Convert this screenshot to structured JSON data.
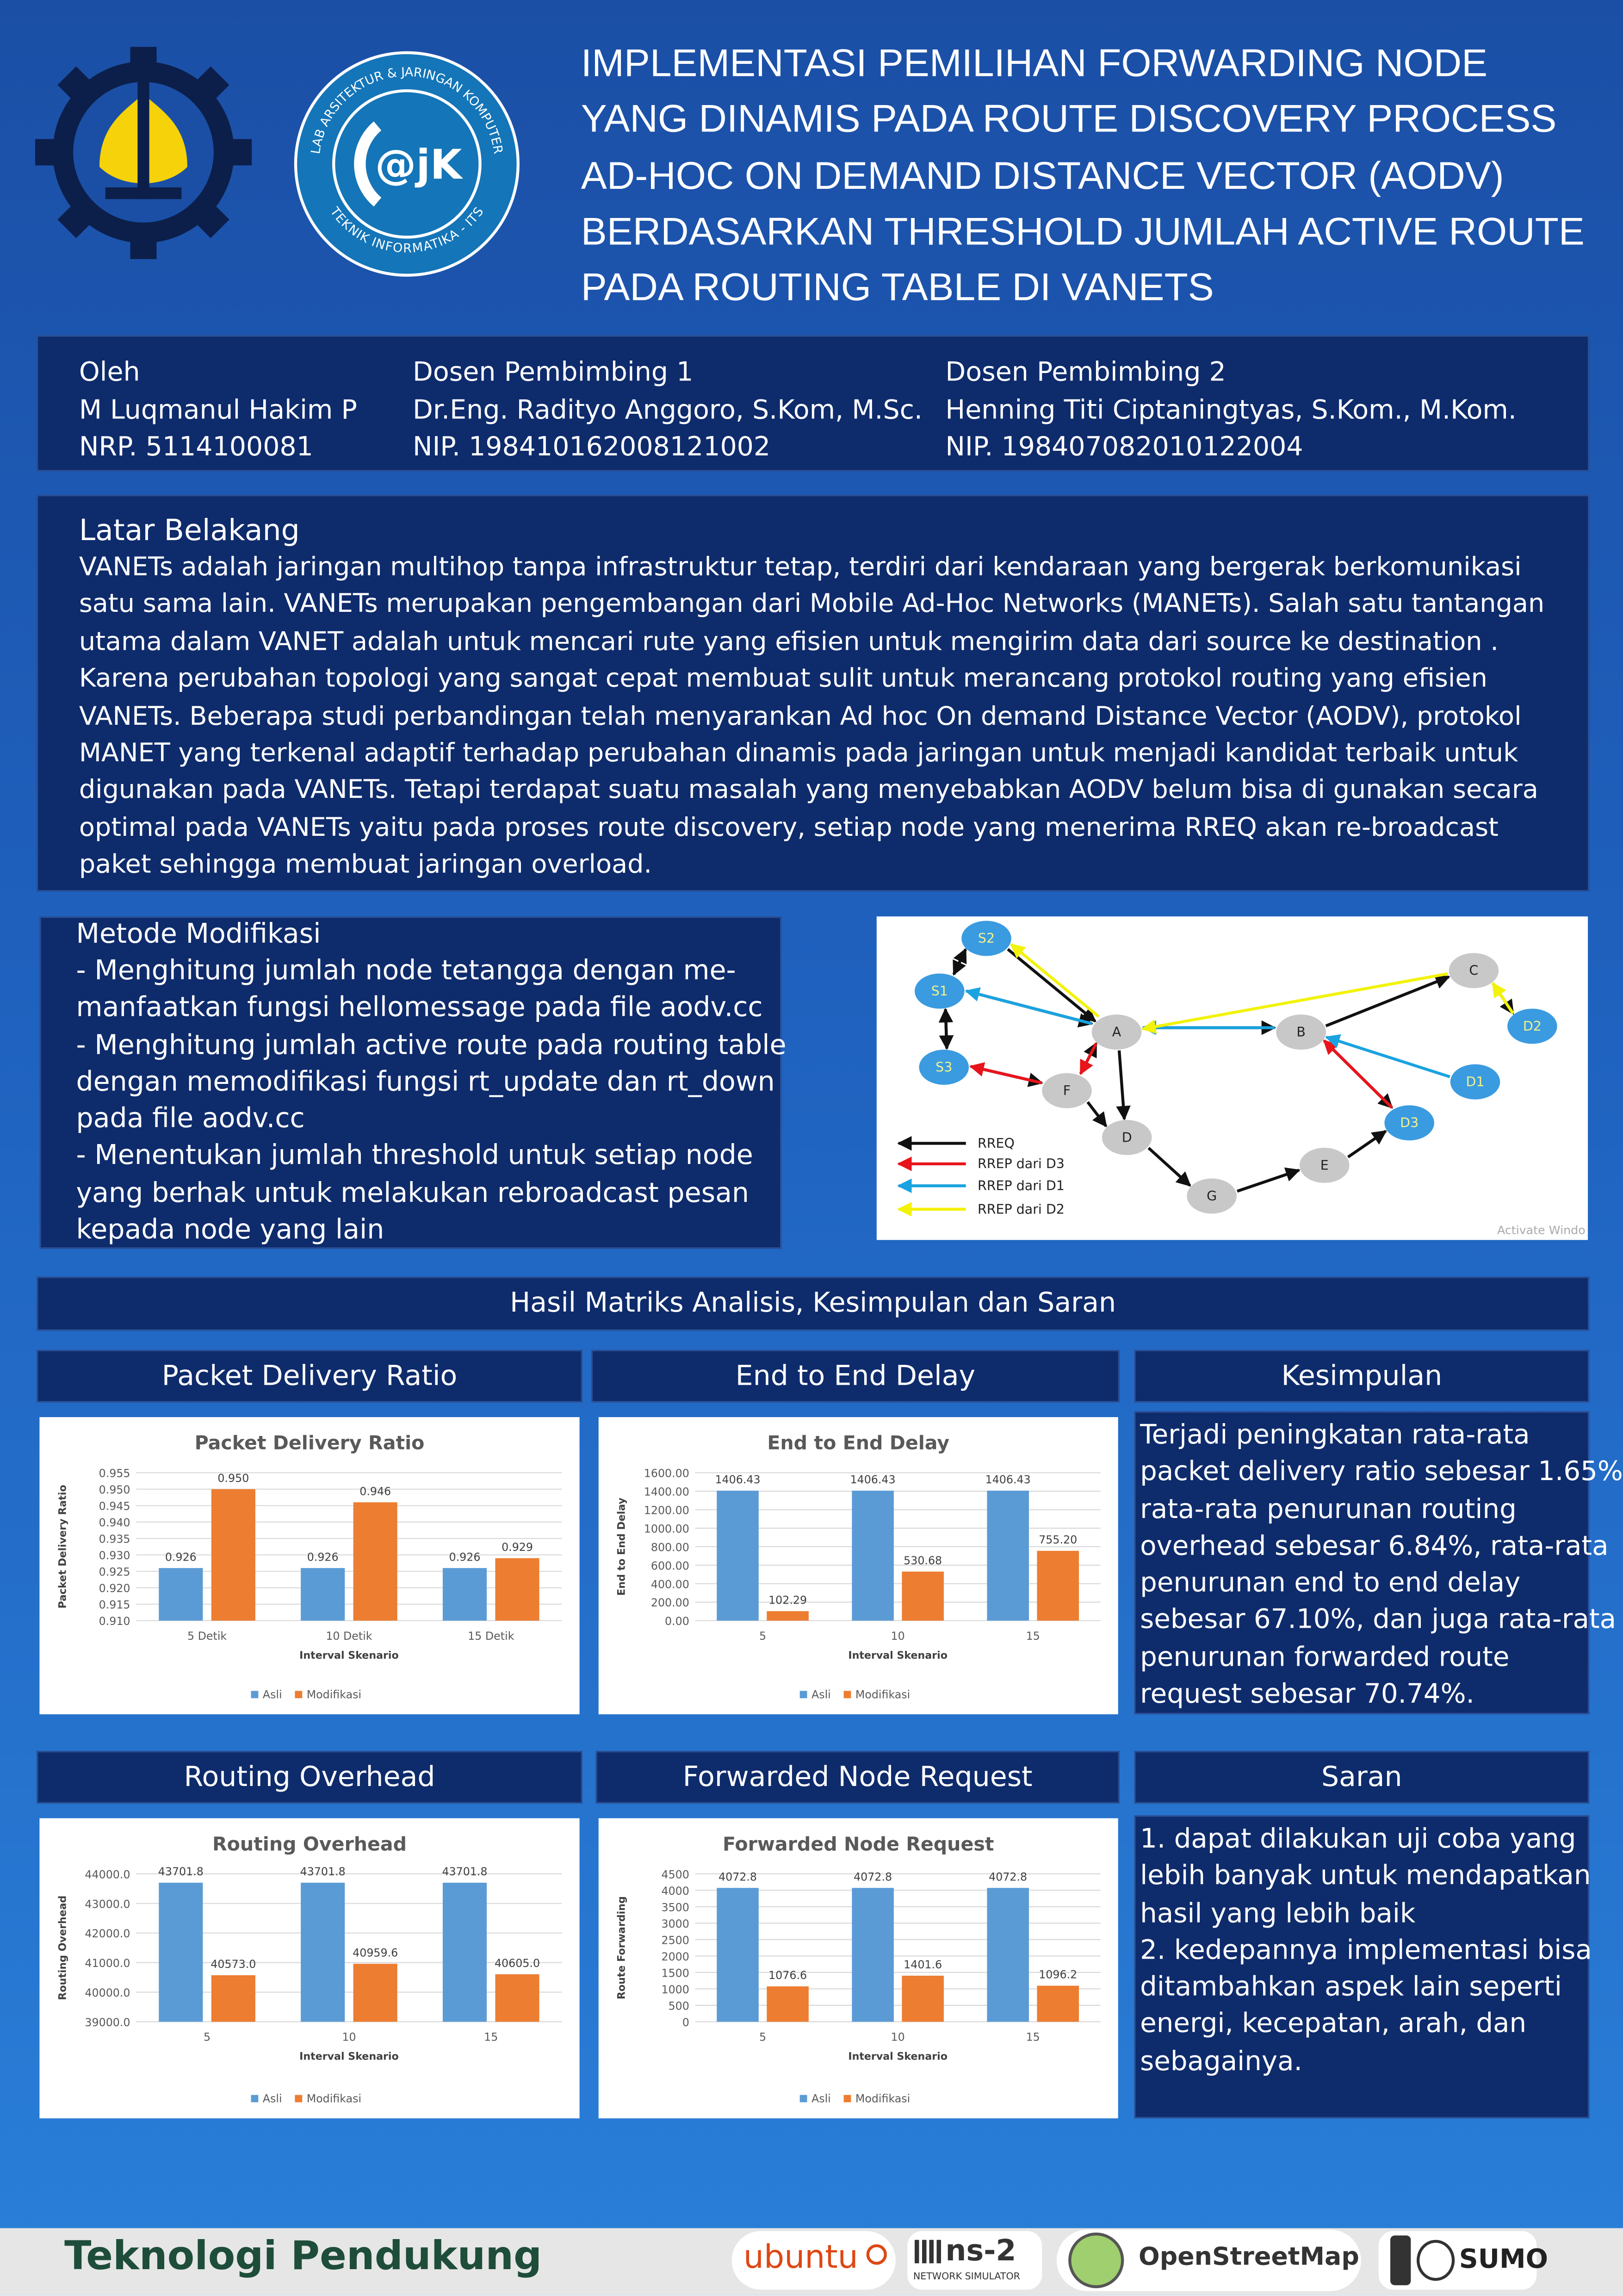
{
  "header": {
    "logo_lab": {
      "ring_top": "LAB ARSITEKTUR & JARINGAN KOMPUTER",
      "ring_bottom": "TEKNIK INFORMATIKA - ITS",
      "mark": "@jK"
    },
    "title": [
      "IMPLEMENTASI PEMILIHAN FORWARDING NODE",
      "YANG DINAMIS PADA ROUTE DISCOVERY PROCESS",
      "AD-HOC ON DEMAND DISTANCE VECTOR (AODV)",
      "BERDASARKAN THRESHOLD JUMLAH ACTIVE ROUTE",
      "PADA ROUTING TABLE DI VANETS"
    ]
  },
  "authors": [
    {
      "role": "Oleh",
      "name": "M Luqmanul Hakim P",
      "id": "NRP. 5114100081"
    },
    {
      "role": "Dosen Pembimbing 1",
      "name": "Dr.Eng. Radityo Anggoro, S.Kom, M.Sc.",
      "id": "NIP. 198410162008121002"
    },
    {
      "role": "Dosen Pembimbing 2",
      "name": "Henning Titi Ciptaningtyas, S.Kom., M.Kom.",
      "id": "NIP. 198407082010122004"
    }
  ],
  "background": {
    "heading": "Latar Belakang",
    "lines": [
      "VANETs adalah jaringan multihop tanpa infrastruktur tetap, terdiri dari kendaraan yang bergerak berkomunikasi",
      "satu sama lain. VANETs merupakan pengembangan dari Mobile Ad-Hoc Networks (MANETs). Salah satu tantangan",
      "utama dalam VANET adalah untuk mencari rute yang efisien untuk mengirim data dari source ke destination .",
      "Karena perubahan topologi yang sangat cepat membuat sulit untuk merancang protokol routing yang efisien",
      "VANETs. Beberapa studi perbandingan telah menyarankan Ad hoc On demand Distance Vector (AODV), protokol",
      "MANET yang terkenal adaptif terhadap perubahan dinamis pada jaringan untuk menjadi kandidat terbaik untuk",
      "digunakan pada VANETs. Tetapi terdapat suatu masalah yang menyebabkan AODV belum bisa di gunakan secara",
      "optimal pada VANETs yaitu pada proses route discovery, setiap node yang menerima RREQ akan re-broadcast",
      "paket sehingga membuat jaringan overload."
    ]
  },
  "method": {
    "heading": "Metode Modifikasi",
    "lines": [
      "- Menghitung jumlah node tetangga dengan me-",
      "manfaatkan fungsi hellomessage pada file aodv.cc",
      "- Menghitung jumlah active route  pada routing table",
      "dengan memodifikasi fungsi rt_update dan rt_down",
      "pada file aodv.cc",
      "- Menentukan jumlah threshold untuk setiap node",
      "yang berhak untuk melakukan rebroadcast pesan",
      "kepada node yang lain"
    ]
  },
  "diagram": {
    "nodes": [
      "S2",
      "S1",
      "S3",
      "A",
      "F",
      "D",
      "G",
      "E",
      "B",
      "C",
      "D2",
      "D1",
      "D3"
    ],
    "legend": [
      "RREQ",
      "RREP dari D3",
      "RREP dari D1",
      "RREP dari D2"
    ],
    "watermark": "Activate Windo"
  },
  "results_heading": "Hasil Matriks Analisis, Kesimpulan dan Saran",
  "panels": [
    "Packet Delivery Ratio",
    "End to End Delay",
    "Routing Overhead",
    "Forwarded Node Request"
  ],
  "chart_data": [
    {
      "type": "bar",
      "title": "Packet Delivery Ratio",
      "x_label": "Interval Skenario",
      "y_label": "Packet Delivery Ratio",
      "categories": [
        "5 Detik",
        "10 Detik",
        "15 Detik"
      ],
      "series": [
        {
          "name": "Asli",
          "color": "#5b9bd5",
          "values": [
            0.926,
            0.926,
            0.926
          ]
        },
        {
          "name": "Modifikasi",
          "color": "#ed7d31",
          "values": [
            0.95,
            0.946,
            0.929
          ],
          "value_labels": [
            "0.950",
            "0.946",
            "0.929"
          ]
        }
      ],
      "ylim": [
        0.91,
        0.955
      ],
      "yticks": [
        {
          "value": 0.91,
          "label": "0.910"
        },
        0.915,
        {
          "value": 0.92,
          "label": "0.920"
        },
        0.925,
        {
          "value": 0.93,
          "label": "0.930"
        },
        0.935,
        {
          "value": 0.94,
          "label": "0.940"
        },
        0.945,
        {
          "value": 0.95,
          "label": "0.950"
        },
        0.955
      ],
      "grid": true
    },
    {
      "type": "bar",
      "title": "End to End Delay",
      "x_label": "Interval Skenario",
      "y_label": "End to End Delay",
      "categories": [
        "5",
        "10",
        "15"
      ],
      "series": [
        {
          "name": "Asli",
          "color": "#5b9bd5",
          "values": [
            1406.43,
            1406.43,
            1406.43
          ]
        },
        {
          "name": "Modifikasi",
          "color": "#ed7d31",
          "values": [
            102.29,
            530.68,
            755.2
          ],
          "value_labels": [
            "102.29",
            "530.68",
            "755.20"
          ]
        }
      ],
      "ylim": [
        0,
        1600
      ],
      "yticks": [
        {
          "value": 0,
          "label": "0.00"
        },
        {
          "value": 200,
          "label": "200.00"
        },
        {
          "value": 400,
          "label": "400.00"
        },
        {
          "value": 600,
          "label": "600.00"
        },
        {
          "value": 800,
          "label": "800.00"
        },
        {
          "value": 1000,
          "label": "1000.00"
        },
        {
          "value": 1200,
          "label": "1200.00"
        },
        {
          "value": 1400,
          "label": "1400.00"
        },
        {
          "value": 1600,
          "label": "1600.00"
        }
      ],
      "grid": true
    },
    {
      "type": "bar",
      "title": "Routing Overhead",
      "x_label": "Interval Skenario",
      "y_label": "Routing Overhead",
      "categories": [
        "5",
        "10",
        "15"
      ],
      "series": [
        {
          "name": "Asli",
          "color": "#5b9bd5",
          "values": [
            43701.8,
            43701.8,
            43701.8
          ]
        },
        {
          "name": "Modifikasi",
          "color": "#ed7d31",
          "values": [
            40573,
            40959.6,
            40605
          ],
          "value_labels": [
            "40573.0",
            "40959.6",
            "40605.0"
          ]
        }
      ],
      "ylim": [
        39000,
        44000
      ],
      "yticks": [
        {
          "value": 39000,
          "label": "39000.0"
        },
        {
          "value": 40000,
          "label": "40000.0"
        },
        {
          "value": 41000,
          "label": "41000.0"
        },
        {
          "value": 42000,
          "label": "42000.0"
        },
        {
          "value": 43000,
          "label": "43000.0"
        },
        {
          "value": 44000,
          "label": "44000.0"
        }
      ],
      "grid": true
    },
    {
      "type": "bar",
      "title": "Forwarded Node Request",
      "x_label": "Interval Skenario",
      "y_label": "Route Forwarding",
      "categories": [
        "5",
        "10",
        "15"
      ],
      "series": [
        {
          "name": "Asli",
          "color": "#5b9bd5",
          "values": [
            4072.8,
            4072.8,
            4072.8
          ]
        },
        {
          "name": "Modifikasi",
          "color": "#ed7d31",
          "values": [
            1076.6,
            1401.6,
            1096.2
          ]
        }
      ],
      "ylim": [
        0,
        4500
      ],
      "yticks": [
        0,
        500,
        1000,
        1500,
        2000,
        2500,
        3000,
        3500,
        4000,
        4500
      ],
      "grid": true
    }
  ],
  "conclusion": {
    "heading": "Kesimpulan",
    "lines": [
      "Terjadi peningkatan rata-rata",
      "packet delivery ratio sebesar 1.65%",
      "rata-rata penurunan routing",
      "overhead sebesar 6.84%, rata-rata",
      "penurunan end to end delay",
      "sebesar 67.10%, dan juga rata-rata",
      "penurunan forwarded route",
      "request sebesar 70.74%."
    ]
  },
  "suggestion": {
    "heading": "Saran",
    "lines": [
      "1. dapat dilakukan uji coba yang",
      "lebih banyak untuk mendapatkan",
      "hasil yang lebih baik",
      "2. kedepannya implementasi bisa",
      "ditambahkan aspek lain seperti",
      "energi, kecepatan, arah, dan",
      "sebagainya."
    ]
  },
  "footer": {
    "heading": "Teknologi Pendukung",
    "logos": [
      "ubuntu",
      "ns-2",
      "NETWORK SIMULATOR",
      "OpenStreetMap",
      "SUMO"
    ]
  }
}
